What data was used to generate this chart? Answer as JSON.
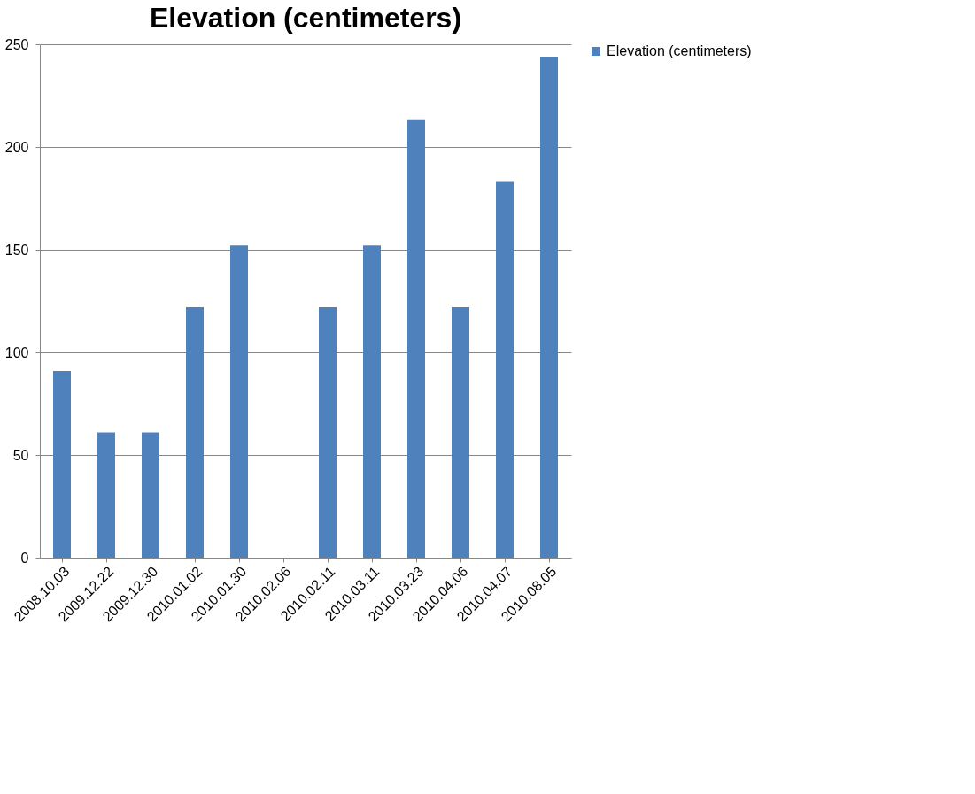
{
  "chart_data": {
    "type": "bar",
    "title": "Elevation (centimeters)",
    "categories": [
      "2008.10.03",
      "2009.12.22",
      "2009.12.30",
      "2010.01.02",
      "2010.01.30",
      "2010.02.06",
      "2010.02.11",
      "2010.03.11",
      "2010.03.23",
      "2010.04.06",
      "2010.04.07",
      "2010.08.05"
    ],
    "series": [
      {
        "name": "Elevation (centimeters)",
        "color": "#4f81bd",
        "values": [
          91,
          61,
          61,
          122,
          152,
          0,
          122,
          152,
          213,
          122,
          183,
          244
        ]
      }
    ],
    "ylim": [
      0,
      250
    ],
    "yticks": [
      0,
      50,
      100,
      150,
      200,
      250
    ],
    "grid": "y",
    "legend": "right"
  }
}
